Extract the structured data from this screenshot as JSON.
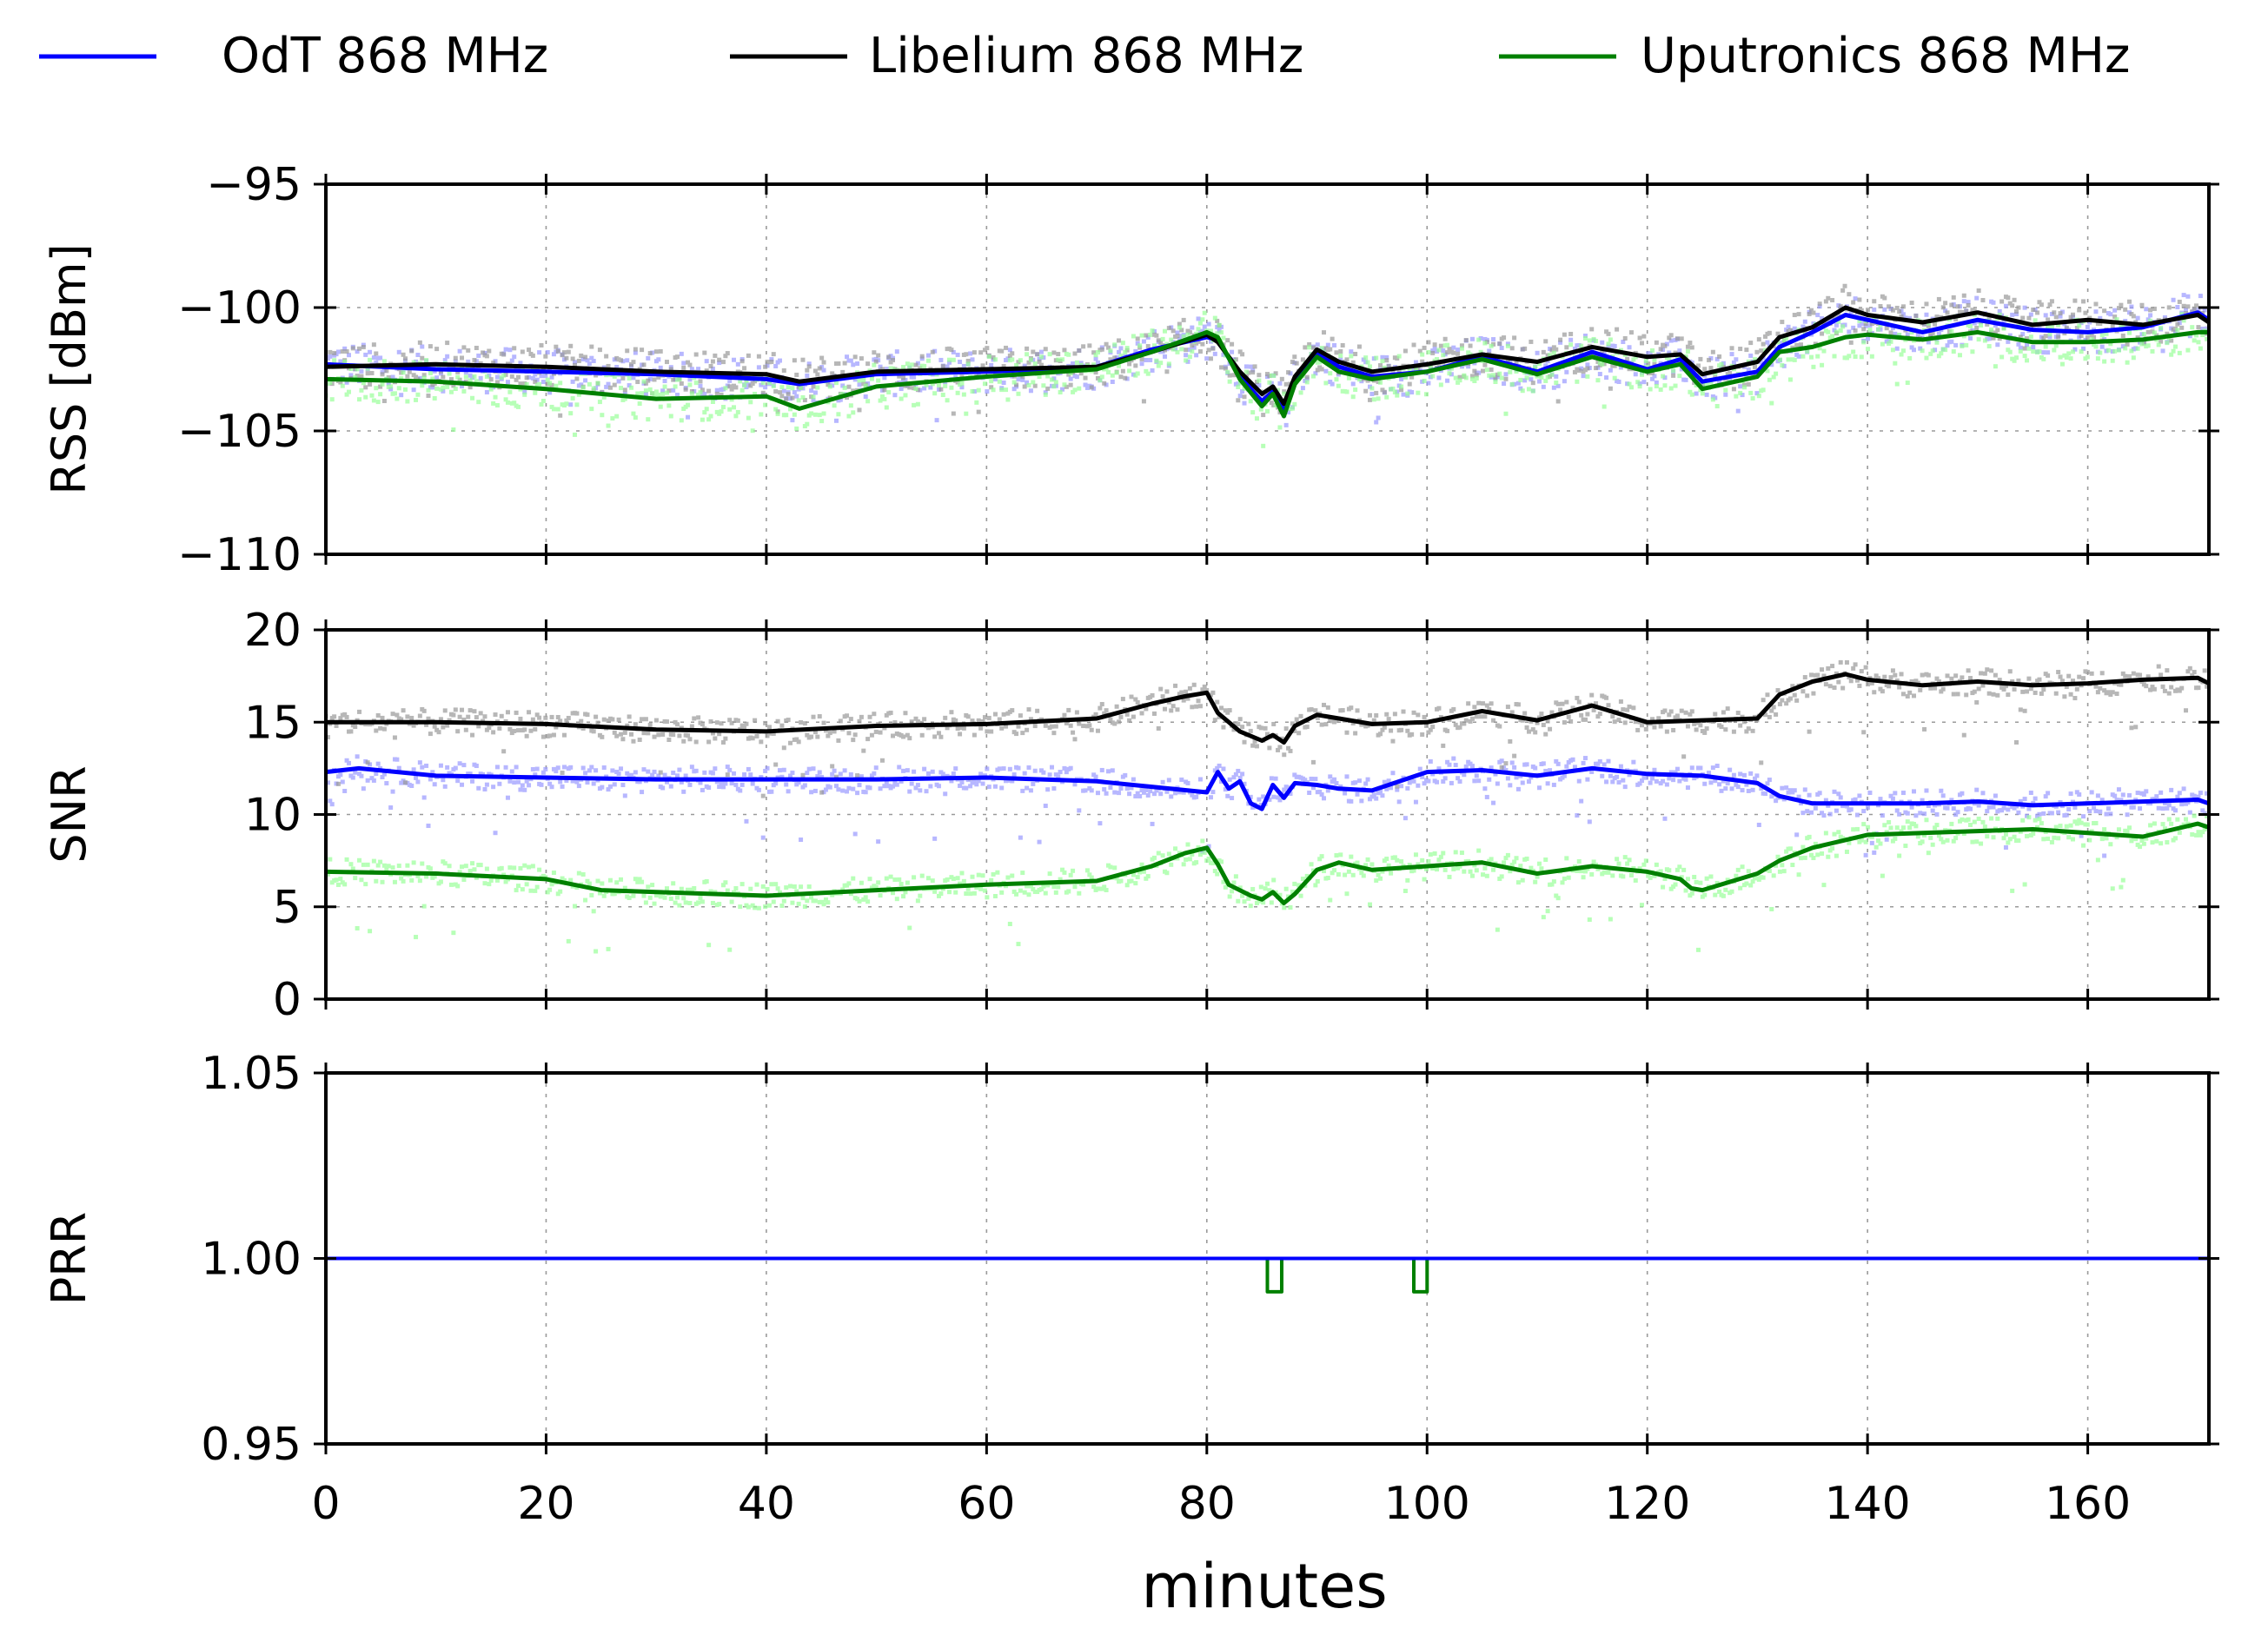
{
  "chart_data": {
    "type": "line",
    "legend": {
      "placement": "top",
      "entries": [
        {
          "label": "OdT 868 MHz",
          "color": "#0000ff"
        },
        {
          "label": "Libelium 868 MHz",
          "color": "#000000"
        },
        {
          "label": "Uputronics 868 MHz",
          "color": "#008000"
        }
      ]
    },
    "xlabel": "minutes",
    "xlim": [
      0,
      171
    ],
    "xticks": [
      0,
      20,
      40,
      60,
      80,
      100,
      120,
      140,
      160
    ],
    "raw_colors": {
      "OdT 868 MHz": "#9999ff",
      "Libelium 868 MHz": "#999999",
      "Uputronics 868 MHz": "#99ff99"
    },
    "panels": [
      {
        "name": "rss",
        "ylabel": "RSS [dBm]",
        "ylim": [
          -110,
          -95
        ],
        "yticks": [
          -95,
          -100,
          -105,
          -110
        ],
        "ytick_labels": [
          "−95",
          "−100",
          "−105",
          "−110"
        ],
        "series": [
          {
            "name": "OdT 868 MHz",
            "x": [
              0,
              10,
              20,
              30,
              40,
              43,
              50,
              60,
              70,
              75,
              80,
              81,
              83,
              85,
              86,
              87,
              88,
              90,
              92,
              95,
              100,
              105,
              110,
              115,
              120,
              123,
              125,
              130,
              132,
              135,
              138,
              140,
              145,
              150,
              155,
              160,
              165,
              170,
              171
            ],
            "y": [
              -102.3,
              -102.5,
              -102.6,
              -102.7,
              -102.9,
              -103.1,
              -102.7,
              -102.6,
              -102.4,
              -101.7,
              -101.2,
              -101.3,
              -102.8,
              -103.8,
              -103.4,
              -104.2,
              -103.0,
              -101.8,
              -102.4,
              -102.8,
              -102.6,
              -102.0,
              -102.6,
              -101.8,
              -102.5,
              -102.1,
              -103.0,
              -102.6,
              -101.6,
              -101.0,
              -100.3,
              -100.5,
              -101.0,
              -100.5,
              -100.9,
              -101.0,
              -100.8,
              -100.2,
              -100.5
            ]
          },
          {
            "name": "Libelium 868 MHz",
            "x": [
              0,
              10,
              20,
              30,
              40,
              43,
              50,
              60,
              70,
              75,
              80,
              81,
              83,
              85,
              86,
              87,
              88,
              90,
              92,
              95,
              100,
              105,
              110,
              115,
              120,
              123,
              125,
              130,
              132,
              135,
              138,
              140,
              145,
              150,
              155,
              160,
              165,
              170,
              171
            ],
            "y": [
              -102.4,
              -102.3,
              -102.4,
              -102.6,
              -102.7,
              -103.0,
              -102.6,
              -102.5,
              -102.4,
              -101.8,
              -101.1,
              -101.4,
              -102.6,
              -103.5,
              -103.2,
              -103.9,
              -102.8,
              -101.7,
              -102.2,
              -102.6,
              -102.3,
              -101.9,
              -102.2,
              -101.6,
              -102.0,
              -101.9,
              -102.7,
              -102.2,
              -101.2,
              -100.8,
              -100.0,
              -100.3,
              -100.6,
              -100.2,
              -100.7,
              -100.5,
              -100.7,
              -100.3,
              -100.6
            ]
          },
          {
            "name": "Uputronics 868 MHz",
            "x": [
              0,
              10,
              20,
              30,
              40,
              43,
              50,
              60,
              70,
              75,
              80,
              81,
              83,
              85,
              86,
              87,
              88,
              90,
              92,
              95,
              100,
              105,
              110,
              115,
              120,
              123,
              125,
              130,
              132,
              135,
              138,
              140,
              145,
              150,
              155,
              160,
              165,
              170,
              171
            ],
            "y": [
              -102.9,
              -103.0,
              -103.3,
              -103.7,
              -103.6,
              -104.1,
              -103.2,
              -102.8,
              -102.5,
              -101.8,
              -101.0,
              -101.2,
              -102.9,
              -104.0,
              -103.5,
              -104.4,
              -103.1,
              -102.0,
              -102.6,
              -102.9,
              -102.6,
              -102.1,
              -102.7,
              -102.0,
              -102.6,
              -102.3,
              -103.3,
              -102.8,
              -101.8,
              -101.6,
              -101.2,
              -101.1,
              -101.3,
              -101.0,
              -101.4,
              -101.4,
              -101.3,
              -101.0,
              -101.0
            ]
          }
        ]
      },
      {
        "name": "snr",
        "ylabel": "SNR",
        "ylim": [
          0,
          20
        ],
        "yticks": [
          0,
          5,
          10,
          15,
          20
        ],
        "ytick_labels": [
          "0",
          "5",
          "10",
          "15",
          "20"
        ],
        "series": [
          {
            "name": "OdT 868 MHz",
            "x": [
              0,
              3,
              10,
              20,
              30,
              40,
              50,
              60,
              70,
              75,
              80,
              81,
              82,
              83,
              84,
              85,
              86,
              87,
              88,
              90,
              92,
              95,
              100,
              105,
              110,
              115,
              120,
              125,
              130,
              132,
              135,
              140,
              145,
              150,
              155,
              160,
              165,
              170,
              171
            ],
            "y": [
              12.3,
              12.5,
              12.1,
              12.0,
              11.9,
              11.9,
              11.9,
              12.0,
              11.8,
              11.5,
              11.2,
              12.3,
              11.4,
              11.8,
              10.6,
              10.3,
              11.6,
              10.9,
              11.7,
              11.6,
              11.4,
              11.3,
              12.3,
              12.4,
              12.1,
              12.5,
              12.2,
              12.1,
              11.7,
              11.0,
              10.6,
              10.6,
              10.6,
              10.7,
              10.5,
              10.6,
              10.7,
              10.8,
              10.6
            ]
          },
          {
            "name": "Libelium 868 MHz",
            "x": [
              0,
              10,
              20,
              30,
              40,
              50,
              60,
              70,
              75,
              78,
              80,
              81,
              83,
              85,
              86,
              87,
              88,
              90,
              95,
              100,
              105,
              110,
              115,
              120,
              125,
              130,
              132,
              135,
              138,
              140,
              145,
              150,
              155,
              160,
              165,
              170,
              171
            ],
            "y": [
              15.0,
              15.0,
              14.9,
              14.6,
              14.5,
              14.8,
              14.9,
              15.2,
              16.0,
              16.4,
              16.6,
              15.5,
              14.5,
              14.0,
              14.3,
              13.9,
              14.8,
              15.4,
              14.9,
              15.0,
              15.6,
              15.1,
              15.9,
              15.0,
              15.1,
              15.2,
              16.5,
              17.2,
              17.6,
              17.3,
              17.0,
              17.2,
              17.0,
              17.1,
              17.3,
              17.4,
              17.1
            ]
          },
          {
            "name": "Uputronics 868 MHz",
            "x": [
              0,
              10,
              20,
              25,
              30,
              40,
              50,
              60,
              70,
              75,
              78,
              80,
              81,
              82,
              84,
              85,
              86,
              87,
              88,
              90,
              92,
              95,
              100,
              105,
              110,
              115,
              120,
              123,
              124,
              125,
              130,
              132,
              135,
              140,
              145,
              150,
              155,
              160,
              165,
              170,
              171
            ],
            "y": [
              6.9,
              6.8,
              6.5,
              5.9,
              5.8,
              5.6,
              5.9,
              6.2,
              6.4,
              7.2,
              7.9,
              8.2,
              7.3,
              6.2,
              5.6,
              5.4,
              5.8,
              5.2,
              5.7,
              7.0,
              7.4,
              7.0,
              7.2,
              7.4,
              6.8,
              7.2,
              6.9,
              6.5,
              6.0,
              5.9,
              6.8,
              7.5,
              8.2,
              8.9,
              9.0,
              9.1,
              9.2,
              9.0,
              8.8,
              9.5,
              9.3
            ]
          }
        ]
      },
      {
        "name": "prr",
        "ylabel": "PRR",
        "ylim": [
          0.95,
          1.05
        ],
        "yticks": [
          0.95,
          1.0,
          1.05
        ],
        "ytick_labels": [
          "0.95",
          "1.00",
          "1.05"
        ],
        "series": [
          {
            "name": "OdT 868 MHz",
            "x": [
              0,
              171
            ],
            "y": [
              1.0,
              1.0
            ]
          },
          {
            "name": "Libelium 868 MHz",
            "x": [
              0,
              171
            ],
            "y": [
              1.0,
              1.0
            ]
          },
          {
            "name": "Uputronics 868 MHz",
            "x": [
              0,
              85.5,
              85.5,
              86.8,
              86.8,
              98.8,
              98.8,
              100.0,
              100.0,
              171
            ],
            "y": [
              1.0,
              1.0,
              0.991,
              0.991,
              1.0,
              1.0,
              0.991,
              0.991,
              1.0,
              1.0
            ]
          }
        ]
      }
    ]
  }
}
